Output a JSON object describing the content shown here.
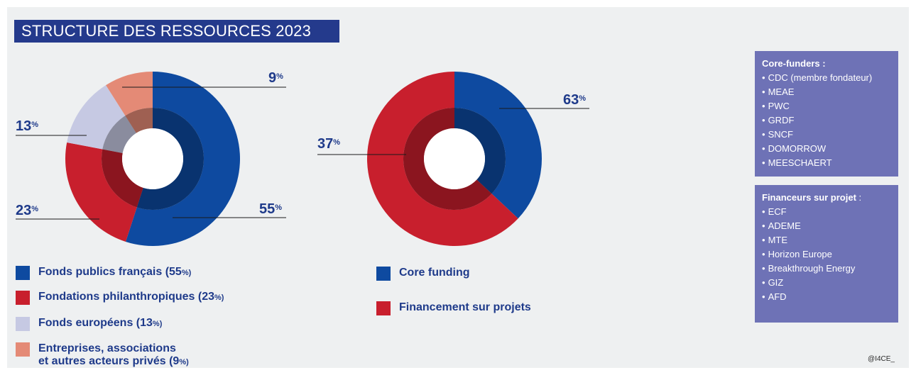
{
  "title": "STRUCTURE DES RESSOURCES 2023",
  "credit": "@I4CE_",
  "chart_data": [
    {
      "type": "pie",
      "variant": "donut",
      "categories": [
        "Fonds publics français",
        "Fondations philanthropiques",
        "Fonds européens",
        "Entreprises, associations et autres acteurs privés"
      ],
      "values": [
        55,
        23,
        13,
        9
      ],
      "labels": [
        "55",
        "23",
        "13",
        "9"
      ],
      "unit": "%",
      "colors": [
        "#0e4aa0",
        "#c81f2d",
        "#c6c9e3",
        "#e48a76"
      ],
      "legend": [
        {
          "text": "Fonds publics français (55",
          "suffix": "%)"
        },
        {
          "text": "Fondations philanthropiques (23",
          "suffix": "%)"
        },
        {
          "text": "Fonds européens (13",
          "suffix": "%)"
        },
        {
          "line1": "Entreprises, associations",
          "text": "et autres acteurs privés (9",
          "suffix": "%)"
        }
      ]
    },
    {
      "type": "pie",
      "variant": "donut",
      "categories": [
        "Core funding",
        "Financement sur projets"
      ],
      "values": [
        37,
        63
      ],
      "labels": [
        "37",
        "63"
      ],
      "unit": "%",
      "colors": [
        "#0e4aa0",
        "#c81f2d"
      ],
      "legend": [
        {
          "text": "Core funding"
        },
        {
          "text": "Financement sur projets"
        }
      ]
    }
  ],
  "core_funders": {
    "heading": "Core-funders :",
    "items": [
      "CDC (membre fondateur)",
      "MEAE",
      "PWC",
      "GRDF",
      "SNCF",
      "DOMORROW",
      "MEESCHAERT"
    ]
  },
  "project_funders": {
    "heading": "Financeurs sur projet",
    "heading_suffix": " :",
    "items": [
      "ECF",
      "ADEME",
      "MTE",
      "Horizon Europe",
      "Breakthrough Energy",
      "GIZ",
      "AFD"
    ]
  }
}
